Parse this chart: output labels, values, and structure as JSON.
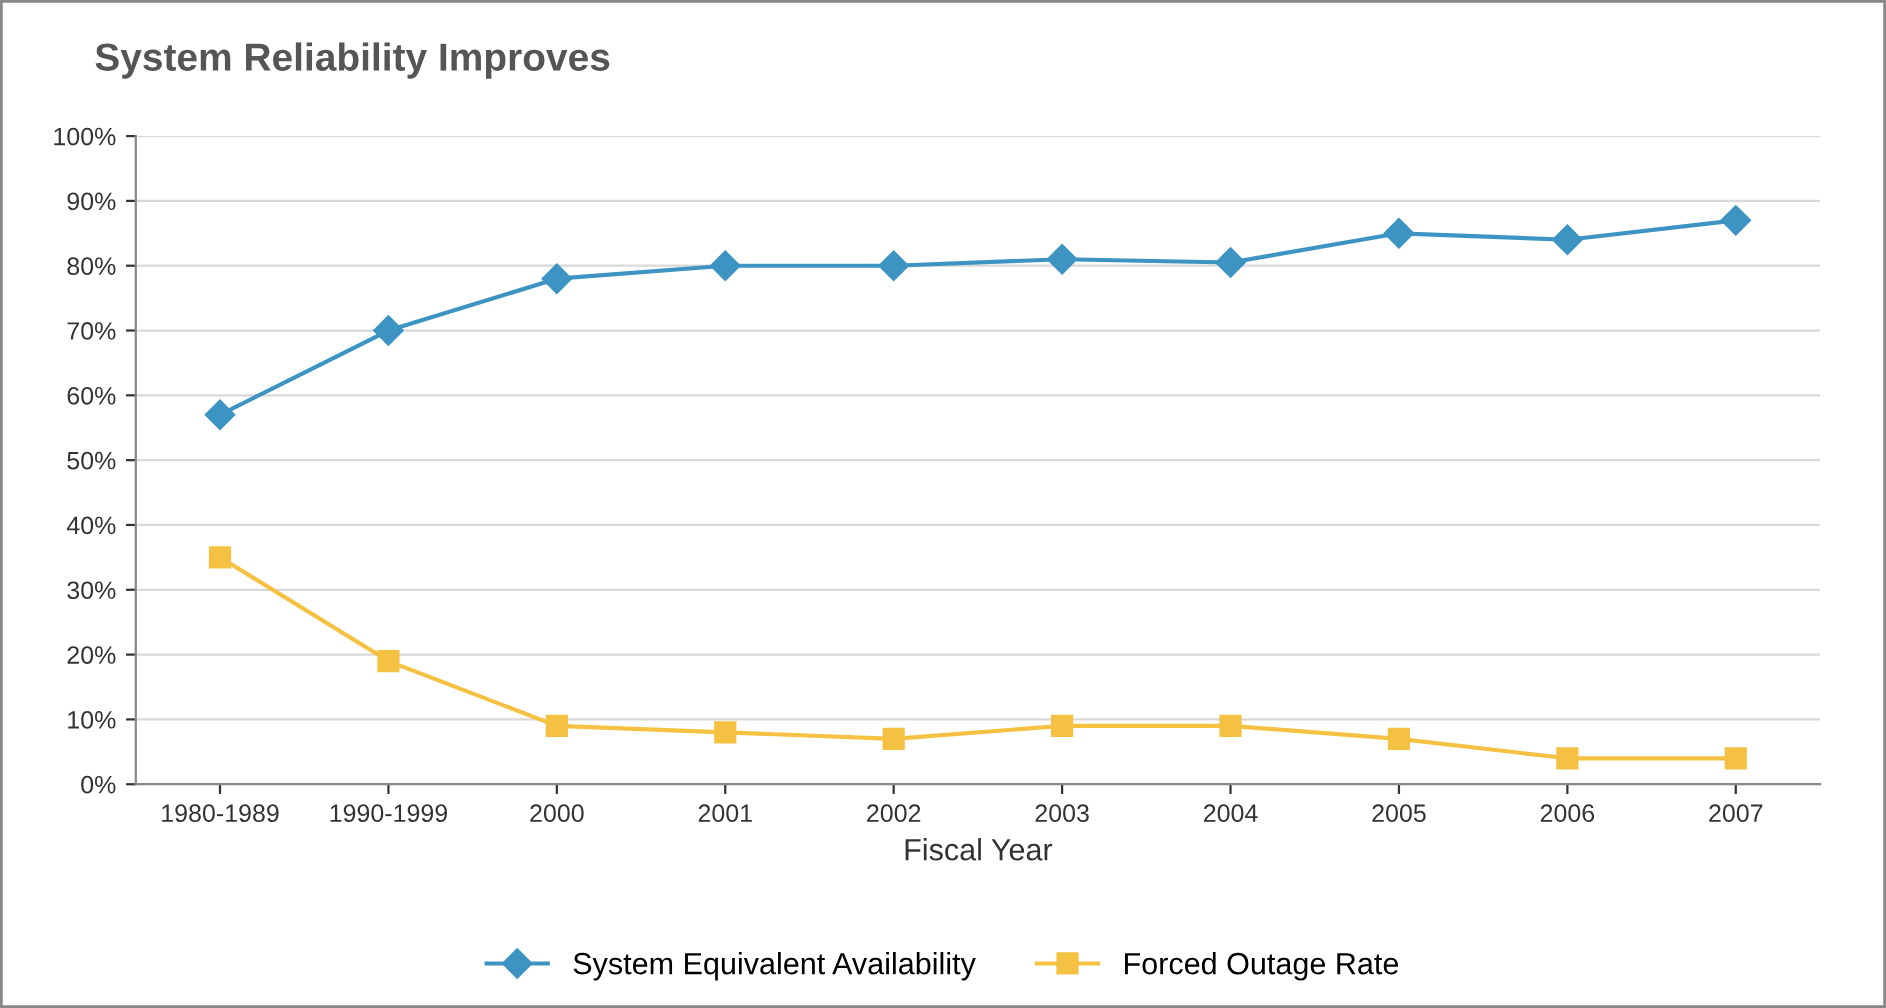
{
  "chart_data": {
    "type": "line",
    "title": "System Reliability Improves",
    "xlabel": "Fiscal Year",
    "categories": [
      "1980-1989",
      "1990-1999",
      "2000",
      "2001",
      "2002",
      "2003",
      "2004",
      "2005",
      "2006",
      "2007"
    ],
    "series": [
      {
        "name": "System Equivalent Availability",
        "color": "#3d94c3",
        "marker": "diamond",
        "values": [
          57,
          70,
          78,
          80,
          80,
          81,
          80.5,
          85,
          84,
          87
        ]
      },
      {
        "name": "Forced Outage Rate",
        "color": "#f5c142",
        "marker": "square",
        "values": [
          35,
          19,
          9,
          8,
          7,
          9,
          9,
          7,
          4,
          4
        ]
      }
    ],
    "ylim": [
      0,
      100
    ],
    "yticks": [
      {
        "value": 0,
        "label": "0%"
      },
      {
        "value": 10,
        "label": "10%"
      },
      {
        "value": 20,
        "label": "20%"
      },
      {
        "value": 30,
        "label": "30%"
      },
      {
        "value": 40,
        "label": "40%"
      },
      {
        "value": 50,
        "label": "50%"
      },
      {
        "value": 60,
        "label": "60%"
      },
      {
        "value": 70,
        "label": "70%"
      },
      {
        "value": 80,
        "label": "80%"
      },
      {
        "value": 90,
        "label": "90%"
      },
      {
        "value": 100,
        "label": "100%"
      }
    ],
    "grid": "y",
    "legend": "bottom",
    "line_style": "solid"
  }
}
